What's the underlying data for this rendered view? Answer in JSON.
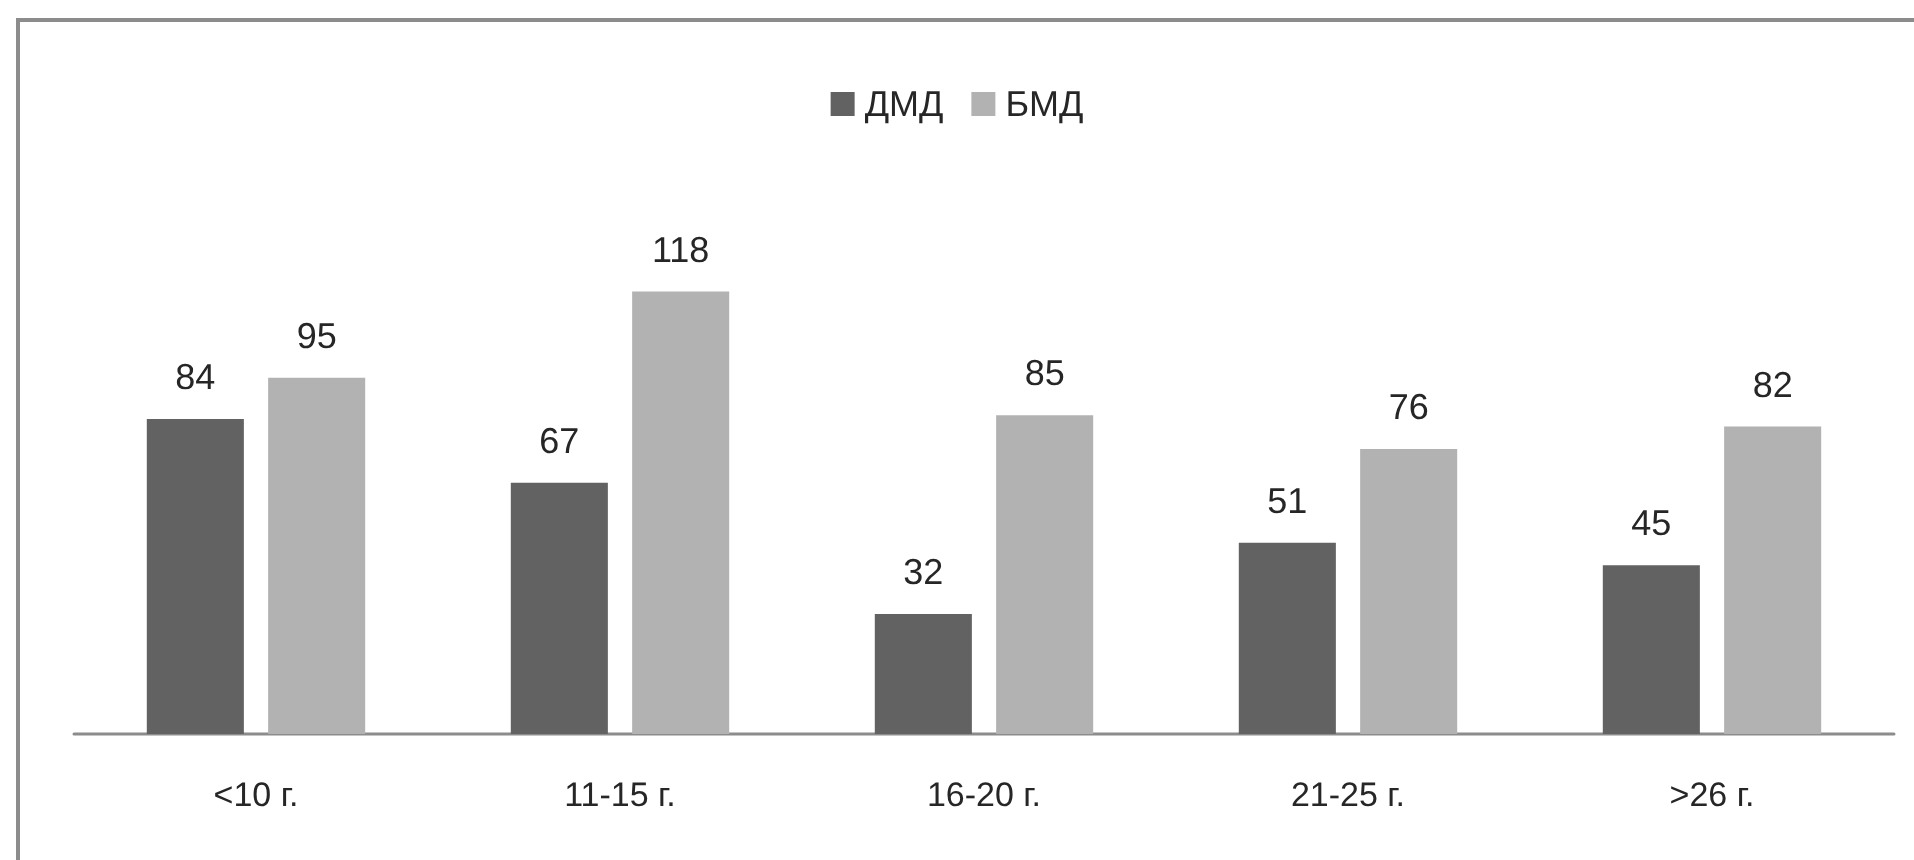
{
  "chart_data": {
    "type": "bar",
    "categories": [
      "<10 г.",
      "11-15 г.",
      "16-20 г.",
      "21-25 г.",
      ">26 г."
    ],
    "series": [
      {
        "name": "ДМД",
        "color": "#626262",
        "values": [
          84,
          67,
          32,
          51,
          45
        ]
      },
      {
        "name": "БМД",
        "color": "#b2b2b2",
        "values": [
          95,
          118,
          85,
          76,
          82
        ]
      }
    ],
    "data_labels": true,
    "legend": "top",
    "tick_labels": "x"
  }
}
